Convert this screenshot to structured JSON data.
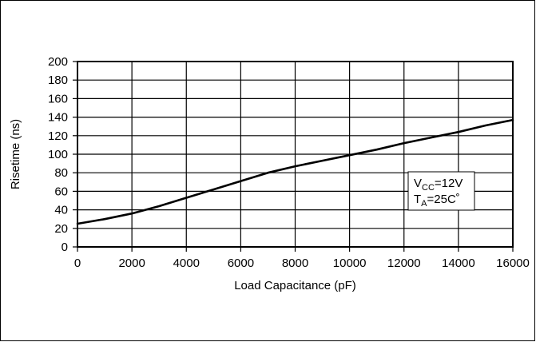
{
  "chart_data": {
    "type": "line",
    "xlabel": "Load Capacitance (pF)",
    "ylabel": "Risetime (ns)",
    "xlim": [
      0,
      16000
    ],
    "ylim": [
      0,
      200
    ],
    "xticks": [
      0,
      2000,
      4000,
      6000,
      8000,
      10000,
      12000,
      14000,
      16000
    ],
    "yticks": [
      0,
      20,
      40,
      60,
      80,
      100,
      120,
      140,
      160,
      180,
      200
    ],
    "grid": true,
    "series": [
      {
        "x": [
          0,
          1000,
          2000,
          3000,
          4000,
          5000,
          6000,
          7000,
          8000,
          9000,
          10000,
          11000,
          12000,
          13000,
          14000,
          15000,
          16000
        ],
        "y": [
          25,
          30,
          36,
          44,
          53,
          62,
          71,
          80,
          87,
          93,
          99,
          105,
          112,
          118,
          124,
          131,
          137
        ]
      }
    ],
    "annotation": {
      "line1_main": "V",
      "line1_sub": "CC",
      "line1_rest": "=12V",
      "line2_main": "T",
      "line2_sub": "A",
      "line2_rest": "=25C˚"
    }
  }
}
